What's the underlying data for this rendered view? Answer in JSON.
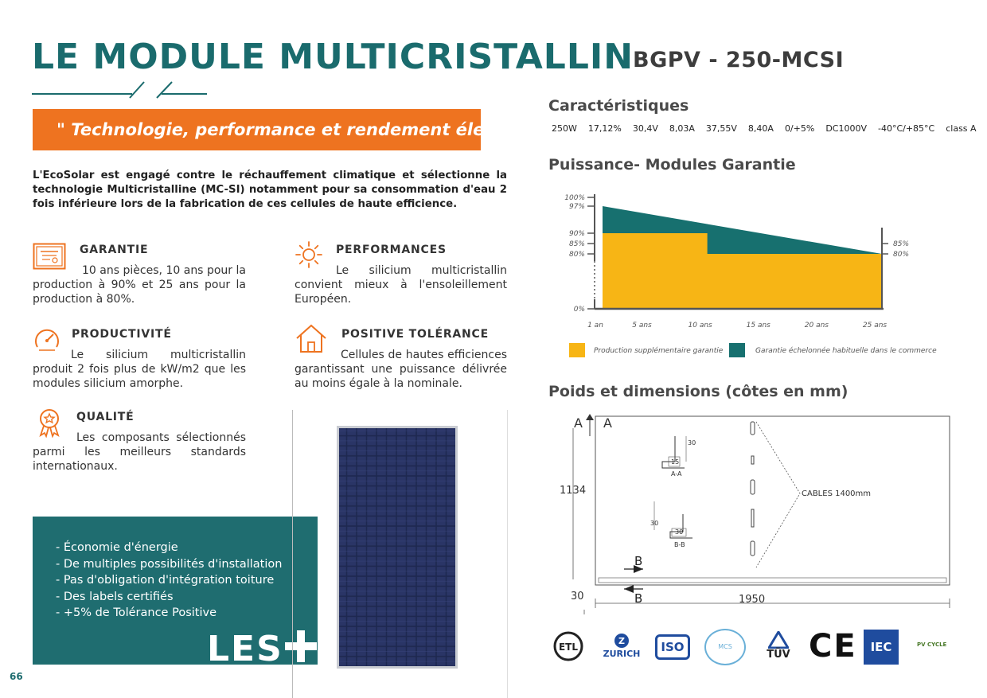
{
  "header": {
    "title": "LE MODULE MULTICRISTALLIN",
    "model": "BGPV - 250-MCSI"
  },
  "quote": "\" Technologie, performance et rendement élevé. \"",
  "intro": "L'EcoSolar est engagé contre le réchauffement climatique et sélectionne la technologie Multicristalline (MC-SI) notamment pour sa consommation d'eau 2 fois inférieure lors de la fabrication de ces cellules de haute efficience.",
  "features": {
    "garantie": {
      "title": "GARANTIE",
      "text": "10 ans pièces, 10 ans pour la production à 90% et 25 ans pour la production à 80%."
    },
    "performances": {
      "title": "PERFORMANCES",
      "text": "Le silicium multicristallin convient mieux à l'ensoleillement Européen."
    },
    "productivite": {
      "title": "PRODUCTIVITÉ",
      "text": "Le silicium multicristallin produit 2 fois plus de kW/m2 que les modules silicium amorphe."
    },
    "tolerance": {
      "title": "POSITIVE TOLÉRANCE",
      "text": "Cellules de hautes efficiences garantissant une puissance délivrée au moins égale à la nominale."
    },
    "qualite": {
      "title": "QUALITÉ",
      "text": "Les composants sélectionnés parmi les meilleurs standards internationaux."
    }
  },
  "plus": {
    "items": [
      "- Économie d'énergie",
      "- De multiples possibilités d'installation",
      "- Pas d'obligation d'intégration toiture",
      "- Des labels certifiés",
      "- +5% de Tolérance Positive"
    ],
    "label": "LES"
  },
  "caracteristiques": {
    "heading": "Caractéristiques",
    "values": [
      "250W",
      "17,12%",
      "30,4V",
      "8,03A",
      "37,55V",
      "8,40A",
      "0/+5%",
      "DC1000V",
      "-40°C/+85°C",
      "class A"
    ]
  },
  "garantie_chart": {
    "heading": "Puissance- Modules Garantie",
    "legend_supp": "Production supplémentaire garantie",
    "legend_echel": "Garantie échelonnée habituelle dans le commerce",
    "color_supp": "#f7b515",
    "color_echel": "#17706f"
  },
  "chart_data": {
    "type": "area",
    "x_ticks": [
      "1 an",
      "5 ans",
      "10 ans",
      "15 ans",
      "20 ans",
      "25 ans"
    ],
    "y_ticks_left": [
      "100%",
      "97%",
      "90%",
      "85%",
      "80%",
      "0%"
    ],
    "y_ticks_right": [
      "85%",
      "80%"
    ],
    "series": [
      {
        "name": "Garantie échelonnée habituelle dans le commerce",
        "x": [
          1,
          25
        ],
        "y": [
          97,
          80
        ]
      },
      {
        "name": "Production supplémentaire garantie",
        "x": [
          1,
          10,
          10,
          25
        ],
        "y": [
          90,
          90,
          80,
          80
        ]
      }
    ],
    "xlim": [
      1,
      25
    ],
    "ylim": [
      0,
      100
    ]
  },
  "dimensions": {
    "heading": "Poids et dimensions (côtes en mm)",
    "height": "1134",
    "width": "1950",
    "thickness": "30",
    "cables": "CABLES 1400mm",
    "section_a": "A",
    "section_b": "B",
    "aa_label": "A-A",
    "bb_label": "B-B",
    "dim_30": "30",
    "dim_15": "15",
    "dim_30b": "30"
  },
  "certs": {
    "zurich": "ZURICH",
    "iso": "ISO",
    "mcs": "MCS",
    "tuv": "TÜV",
    "ce": "CE",
    "iec": "IEC",
    "pvcycle": "PV CYCLE"
  },
  "page_number": "66"
}
